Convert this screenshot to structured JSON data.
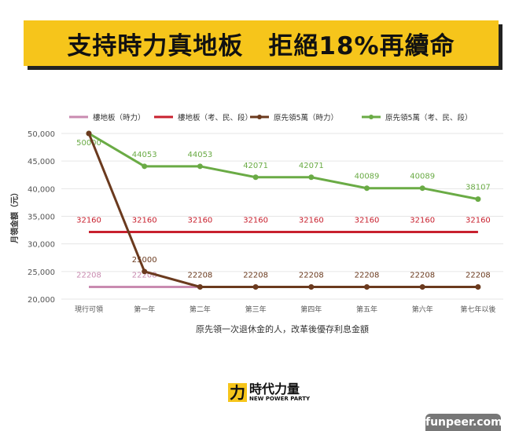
{
  "banner": {
    "title": "支持時力真地板　拒絕18%再續命"
  },
  "chart_data": {
    "type": "line",
    "categories": [
      "現行可領",
      "第一年",
      "第二年",
      "第三年",
      "第四年",
      "第五年",
      "第六年",
      "第七年以後"
    ],
    "xlabel": "原先領一次退休金的人，改革後優存利息金額",
    "ylabel": "月領金額（元）",
    "ylim": [
      20000,
      50000
    ],
    "yticks": [
      20000,
      25000,
      30000,
      35000,
      40000,
      45000,
      50000
    ],
    "ytick_labels": [
      "20,000",
      "25,000",
      "30,000",
      "35,000",
      "40,000",
      "45,000",
      "50,000"
    ],
    "grid": true,
    "legend": "top",
    "series": [
      {
        "name": "樓地板（時力）",
        "color": "#c98bb0",
        "values": [
          22208,
          22208,
          22208,
          null,
          null,
          null,
          null,
          null
        ],
        "labels": [
          "22208",
          "22208",
          "",
          "",
          "",
          "",
          "",
          ""
        ],
        "markers": false
      },
      {
        "name": "樓地板（考、民、段）",
        "color": "#c8202e",
        "values": [
          32160,
          32160,
          32160,
          32160,
          32160,
          32160,
          32160,
          32160
        ],
        "labels": [
          "32160",
          "32160",
          "32160",
          "32160",
          "32160",
          "32160",
          "32160",
          "32160"
        ],
        "markers": false
      },
      {
        "name": "原先領5萬（時力）",
        "color": "#6b3a1e",
        "values": [
          50000,
          25000,
          22208,
          22208,
          22208,
          22208,
          22208,
          22208
        ],
        "labels": [
          "",
          "25000",
          "22208",
          "22208",
          "22208",
          "22208",
          "22208",
          "22208"
        ],
        "markers": true
      },
      {
        "name": "原先領5萬（考、民、段）",
        "color": "#6aab45",
        "values": [
          50000,
          44053,
          44053,
          42071,
          42071,
          40089,
          40089,
          38107
        ],
        "labels": [
          "50000",
          "44053",
          "44053",
          "42071",
          "42071",
          "40089",
          "40089",
          "38107"
        ],
        "markers": true
      }
    ]
  },
  "logo": {
    "mark": "力",
    "name": "時代力量",
    "sub": "NEW POWER PARTY"
  },
  "watermark": "funpeer.com"
}
